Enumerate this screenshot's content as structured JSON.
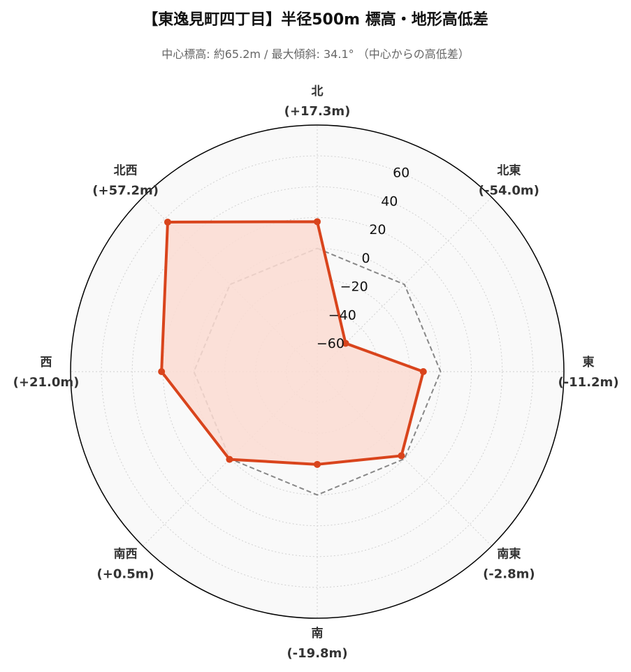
{
  "chart_data": {
    "type": "radar",
    "title": "【東逸見町四丁目】半径500m 標高・地形高低差",
    "subtitle": "中心標高: 約65.2m / 最大傾斜: 34.1° （中心からの高低差）",
    "directions": [
      {
        "name": "北",
        "value_label": "(+17.3m)",
        "value": 17.3
      },
      {
        "name": "北東",
        "value_label": "(-54.0m)",
        "value": -54.0
      },
      {
        "name": "東",
        "value_label": "(-11.2m)",
        "value": -11.2
      },
      {
        "name": "南東",
        "value_label": "(-2.8m)",
        "value": -2.8
      },
      {
        "name": "南",
        "value_label": "(-19.8m)",
        "value": -19.8
      },
      {
        "name": "南西",
        "value_label": "(+0.5m)",
        "value": 0.5
      },
      {
        "name": "西",
        "value_label": "(+21.0m)",
        "value": 21.0
      },
      {
        "name": "北西",
        "value_label": "(+57.2m)",
        "value": 57.2
      }
    ],
    "radial_ticks": [
      -60,
      -40,
      -20,
      0,
      20,
      40,
      60
    ],
    "radial_tick_labels": [
      "−60",
      "−40",
      "−20",
      "0",
      "20",
      "40",
      "60"
    ],
    "rlim": [
      -80,
      80
    ],
    "reference_value": 0,
    "grid": true,
    "colors": {
      "series_line": "#d9441c",
      "series_fill": "#fcdcd2",
      "reference_line": "#888888",
      "background": "#f9f9f9",
      "grid": "#d0d0d0"
    }
  }
}
